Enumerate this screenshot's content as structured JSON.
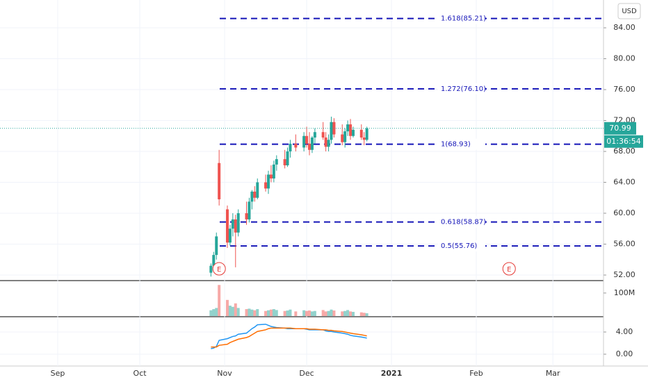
{
  "chart_data": {
    "type": "candlestick",
    "currency": "USD",
    "xlim": [
      9.9,
      230.5
    ],
    "xticks": [
      {
        "value": 31,
        "label": "Sep"
      },
      {
        "value": 61,
        "label": "Oct"
      },
      {
        "value": 92,
        "label": "Nov"
      },
      {
        "value": 122,
        "label": "Dec"
      },
      {
        "value": 153,
        "label": "2021"
      },
      {
        "value": 184,
        "label": "Feb"
      },
      {
        "value": 212,
        "label": "Mar"
      }
    ],
    "ylim": [
      51.37,
      87.6
    ],
    "yticks": [
      {
        "value": 52,
        "label": "52.00"
      },
      {
        "value": 56,
        "label": "56.00"
      },
      {
        "value": 60,
        "label": "60.00"
      },
      {
        "value": 64,
        "label": "64.00"
      },
      {
        "value": 68,
        "label": "68.00"
      },
      {
        "value": 72,
        "label": "72.00"
      },
      {
        "value": 76,
        "label": "76.00"
      },
      {
        "value": 80,
        "label": "80.00"
      },
      {
        "value": 84,
        "label": "84.00"
      }
    ],
    "up_color": "#26a69a",
    "down_color": "#ef5350",
    "x": [
      87,
      88,
      89,
      90,
      93,
      94,
      95,
      96,
      97,
      100,
      101,
      102,
      103,
      104,
      107,
      108,
      109,
      110,
      111,
      114,
      115,
      116,
      118,
      121,
      122,
      123,
      124,
      125,
      128,
      129,
      130,
      131,
      132,
      135,
      136,
      137,
      138,
      139,
      142,
      143,
      144
    ],
    "open": [
      52.3,
      53.2,
      54.6,
      66.5,
      60.5,
      56.2,
      58,
      59.2,
      57.5,
      60,
      59.2,
      61.5,
      62.8,
      62,
      64,
      63.2,
      65,
      64.5,
      66.3,
      67,
      66.2,
      68,
      69,
      68.5,
      70,
      69,
      68.2,
      69.8,
      70.5,
      69.8,
      68.6,
      69.5,
      71.8,
      70.2,
      69.2,
      70.6,
      71.5,
      70,
      70.8,
      69.8,
      69.5
    ],
    "high": [
      53.5,
      55,
      57.5,
      68.2,
      61,
      58.5,
      60,
      59.8,
      60.5,
      61.5,
      62,
      63,
      63.5,
      64.5,
      65,
      65.5,
      66.2,
      66.8,
      67.5,
      68.2,
      68.5,
      69.5,
      70.2,
      70.5,
      71.2,
      70.5,
      70,
      71,
      71.8,
      70.5,
      70.2,
      72.5,
      72.3,
      71.5,
      71,
      72,
      72.2,
      71.2,
      71.5,
      70.5,
      71.2
    ],
    "low": [
      51.8,
      52.8,
      54,
      61,
      55.5,
      55.8,
      57,
      53,
      57,
      58.5,
      58.8,
      60.5,
      61.5,
      61.8,
      62.8,
      62.5,
      64,
      64,
      65.5,
      65.8,
      66,
      67.2,
      68,
      68,
      68.5,
      67.5,
      67.8,
      69,
      69.5,
      68,
      68,
      69,
      69.8,
      68.8,
      68.5,
      70,
      69.5,
      69.8,
      69.5,
      68.8,
      69.3
    ],
    "close": [
      53.2,
      54.6,
      57,
      61.8,
      56.2,
      58,
      59.2,
      57.5,
      60,
      59.2,
      61.5,
      62.8,
      62,
      64,
      63.2,
      65,
      64.5,
      66.3,
      67,
      66.2,
      68,
      69,
      68.5,
      70,
      69,
      68.2,
      69.8,
      70.5,
      69.8,
      68.6,
      69.5,
      71.8,
      70.2,
      69.2,
      70.6,
      71.5,
      70,
      70.8,
      69.8,
      69.5,
      70.99
    ],
    "last_price": 70.99,
    "countdown": "01:36:54",
    "fibonacci": [
      {
        "value": 85.21,
        "label": "1.618(85.21)"
      },
      {
        "value": 76.1,
        "label": "1.272(76.10)"
      },
      {
        "value": 68.93,
        "label": "1(68.93)"
      },
      {
        "value": 58.87,
        "label": "0.618(58.87)"
      },
      {
        "value": 55.76,
        "label": "0.5(55.76)"
      }
    ],
    "fib_color": "#1515b8",
    "events": [
      {
        "x": 90,
        "label": "E"
      },
      {
        "x": 196,
        "label": "E"
      }
    ],
    "volume": {
      "ylim": [
        0,
        151
      ],
      "yticks": [
        {
          "value": 100,
          "label": "100M"
        }
      ],
      "values": [
        25,
        30,
        35,
        135,
        70,
        45,
        40,
        55,
        35,
        30,
        32,
        28,
        25,
        30,
        22,
        25,
        28,
        30,
        26,
        22,
        24,
        28,
        20,
        25,
        22,
        24,
        20,
        22,
        26,
        20,
        22,
        28,
        24,
        20,
        22,
        26,
        20,
        18,
        16,
        14,
        12
      ]
    },
    "macd": {
      "ylim": [
        -2.13,
        6.63
      ],
      "yticks": [
        {
          "value": 0,
          "label": "0.00"
        },
        {
          "value": 4,
          "label": "4.00"
        }
      ],
      "series": [
        {
          "color": "#2196f3",
          "values": [
            1.0,
            1.1,
            1.4,
            2.5,
            2.8,
            3.0,
            3.2,
            3.3,
            3.6,
            3.8,
            4.2,
            4.6,
            4.9,
            5.3,
            5.4,
            5.2,
            5.0,
            4.9,
            4.8,
            4.7,
            4.6,
            4.6,
            4.6,
            4.6,
            4.5,
            4.4,
            4.4,
            4.4,
            4.4,
            4.2,
            4.1,
            4.1,
            4.0,
            3.8,
            3.7,
            3.6,
            3.4,
            3.3,
            3.1,
            3.0,
            2.9
          ]
        },
        {
          "color": "#ff6d00",
          "values": [
            1.3,
            1.3,
            1.3,
            1.6,
            1.8,
            2.1,
            2.3,
            2.5,
            2.7,
            3.0,
            3.2,
            3.5,
            3.8,
            4.1,
            4.4,
            4.6,
            4.7,
            4.7,
            4.7,
            4.7,
            4.7,
            4.7,
            4.6,
            4.6,
            4.6,
            4.5,
            4.5,
            4.5,
            4.4,
            4.4,
            4.3,
            4.3,
            4.2,
            4.1,
            4.0,
            3.9,
            3.8,
            3.7,
            3.5,
            3.4,
            3.3
          ]
        }
      ]
    }
  }
}
